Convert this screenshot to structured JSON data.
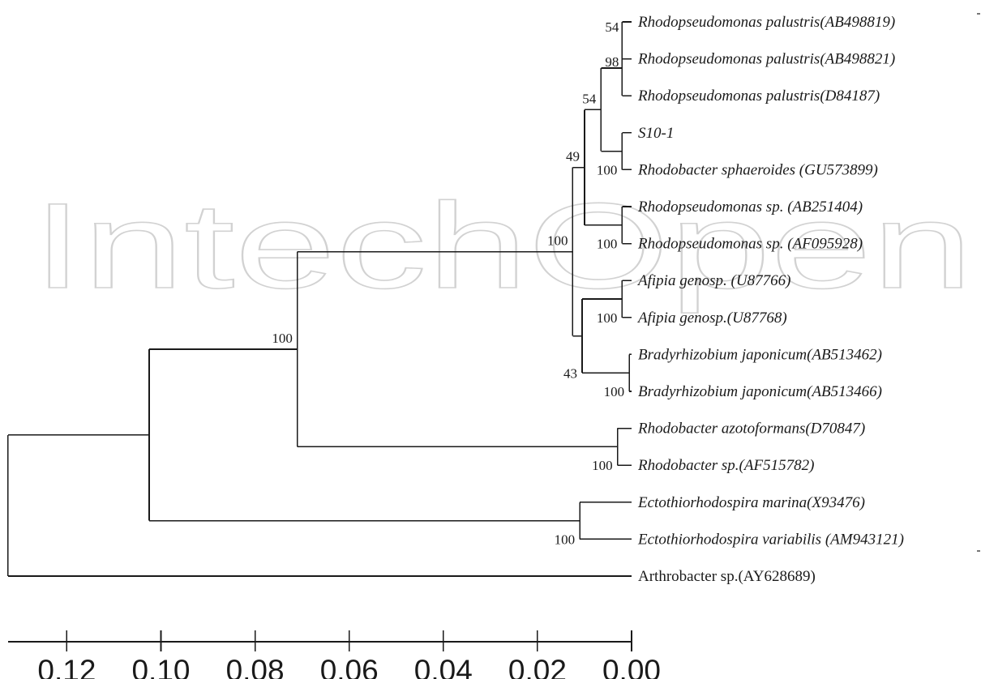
{
  "watermark": "IntechOpen",
  "tree": {
    "taxa": [
      {
        "key": "t1",
        "label": "Rhodopseudomonas palustris(AB498819)",
        "italic": true
      },
      {
        "key": "t2",
        "label": "Rhodopseudomonas palustris(AB498821)",
        "italic": true
      },
      {
        "key": "t3",
        "label": "Rhodopseudomonas palustris(D84187)",
        "italic": true
      },
      {
        "key": "t4",
        "label": "S10-1",
        "italic": true
      },
      {
        "key": "t5",
        "label": "Rhodobacter sphaeroides (GU573899)",
        "italic": true
      },
      {
        "key": "t6",
        "label": "Rhodopseudomonas sp. (AB251404)",
        "italic": true
      },
      {
        "key": "t7",
        "label": "Rhodopseudomonas sp. (AF095928)",
        "italic": true
      },
      {
        "key": "t8",
        "label": "Afipia genosp. (U87766)",
        "italic": true
      },
      {
        "key": "t9",
        "label": "Afipia genosp.(U87768)",
        "italic": true
      },
      {
        "key": "t10",
        "label": "Bradyrhizobium japonicum(AB513462)",
        "italic": true
      },
      {
        "key": "t11",
        "label": "Bradyrhizobium japonicum(AB513466)",
        "italic": true
      },
      {
        "key": "t12",
        "label": "Rhodobacter azotoformans(D70847)",
        "italic": true
      },
      {
        "key": "t13",
        "label": "Rhodobacter sp.(AF515782)",
        "italic": true
      },
      {
        "key": "t14",
        "label": "Ectothiorhodospira marina(X93476)",
        "italic": true
      },
      {
        "key": "t15",
        "label": "Ectothiorhodospira variabilis (AM943121)",
        "italic": true
      },
      {
        "key": "t16",
        "label": "Arthrobacter sp.(AY628689)",
        "italic": false
      }
    ],
    "nodes": [
      {
        "id": "n_pal12",
        "depth": 0.002,
        "children": [
          "t1",
          "t2"
        ],
        "bootstrap": "54"
      },
      {
        "id": "n_pal",
        "depth": 0.002,
        "children": [
          "n_pal12",
          "t3"
        ],
        "bootstrap": "98"
      },
      {
        "id": "n_s10",
        "depth": 0.002,
        "children": [
          "t4",
          "t5"
        ],
        "bootstrap": "100"
      },
      {
        "id": "n_pal_s10",
        "depth": 0.0065,
        "children": [
          "n_pal",
          "n_s10"
        ],
        "bootstrap": "54"
      },
      {
        "id": "n_rsp",
        "depth": 0.002,
        "children": [
          "t6",
          "t7"
        ],
        "bootstrap": "100"
      },
      {
        "id": "n_rhodo",
        "depth": 0.01,
        "children": [
          "n_pal_s10",
          "n_rsp"
        ],
        "bootstrap": "49"
      },
      {
        "id": "n_afipia",
        "depth": 0.002,
        "children": [
          "t8",
          "t9"
        ],
        "bootstrap": "100"
      },
      {
        "id": "n_brady",
        "depth": 0.0005,
        "children": [
          "t10",
          "t11"
        ],
        "bootstrap": "100"
      },
      {
        "id": "n_afi_bra",
        "depth": 0.0105,
        "children": [
          "n_afipia",
          "n_brady"
        ],
        "bootstrap": "43"
      },
      {
        "id": "n_alpha",
        "depth": 0.0125,
        "children": [
          "n_rhodo",
          "n_afi_bra"
        ],
        "bootstrap": "100"
      },
      {
        "id": "n_rb",
        "depth": 0.003,
        "children": [
          "t12",
          "t13"
        ],
        "bootstrap": "100"
      },
      {
        "id": "n_alpha_rb",
        "depth": 0.071,
        "children": [
          "n_alpha",
          "n_rb"
        ],
        "bootstrap": "100"
      },
      {
        "id": "n_ecto",
        "depth": 0.011,
        "children": [
          "t14",
          "t15"
        ],
        "bootstrap": "100"
      },
      {
        "id": "n_ingroup",
        "depth": 0.1025,
        "children": [
          "n_alpha_rb",
          "n_ecto"
        ],
        "bootstrap": ""
      },
      {
        "id": "n_root",
        "depth": 0.1325,
        "children": [
          "n_ingroup",
          "t16"
        ],
        "bootstrap": ""
      }
    ]
  },
  "scale_axis": {
    "ticks": [
      0.12,
      0.1,
      0.08,
      0.06,
      0.04,
      0.02,
      0.0
    ],
    "tick_labels": [
      "0.12",
      "0.10",
      "0.08",
      "0.06",
      "0.04",
      "0.02",
      "0.00"
    ],
    "range": [
      0.0,
      0.1325
    ]
  }
}
